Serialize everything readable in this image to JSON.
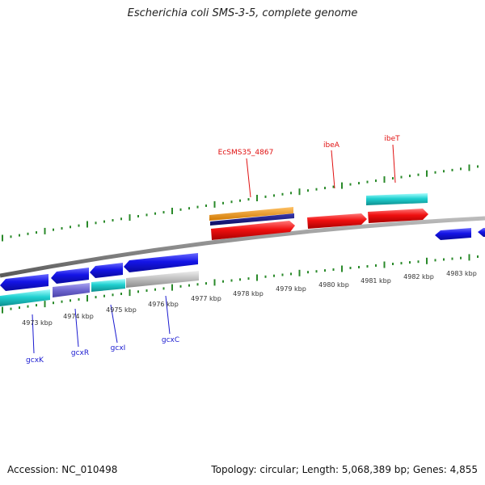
{
  "title": "Escherichia coli SMS-3-5, complete genome",
  "footer": {
    "accession": "Accession: NC_010498",
    "stats": "Topology: circular; Length: 5,068,389 bp; Genes: 4,855"
  },
  "colors": {
    "tick": "#2a8a2a",
    "backbone": "#8c8c8c",
    "gene_label_blue": "#1a1ad0",
    "gene_label_red": "#e01010"
  },
  "scale_labels": [
    "4973 kbp",
    "4974 kbp",
    "4975 kbp",
    "4976 kbp",
    "4977 kbp",
    "4978 kbp",
    "4979 kbp",
    "4980 kbp",
    "4981 kbp",
    "4982 kbp",
    "4983 kbp"
  ],
  "gene_labels": [
    {
      "name": "gcxK",
      "color": "blue"
    },
    {
      "name": "gcxR",
      "color": "blue"
    },
    {
      "name": "gcxI",
      "color": "blue"
    },
    {
      "name": "gcxC",
      "color": "blue"
    },
    {
      "name": "EcSMS35_4867",
      "color": "red"
    },
    {
      "name": "ibeA",
      "color": "red"
    },
    {
      "name": "ibeT",
      "color": "red"
    }
  ]
}
